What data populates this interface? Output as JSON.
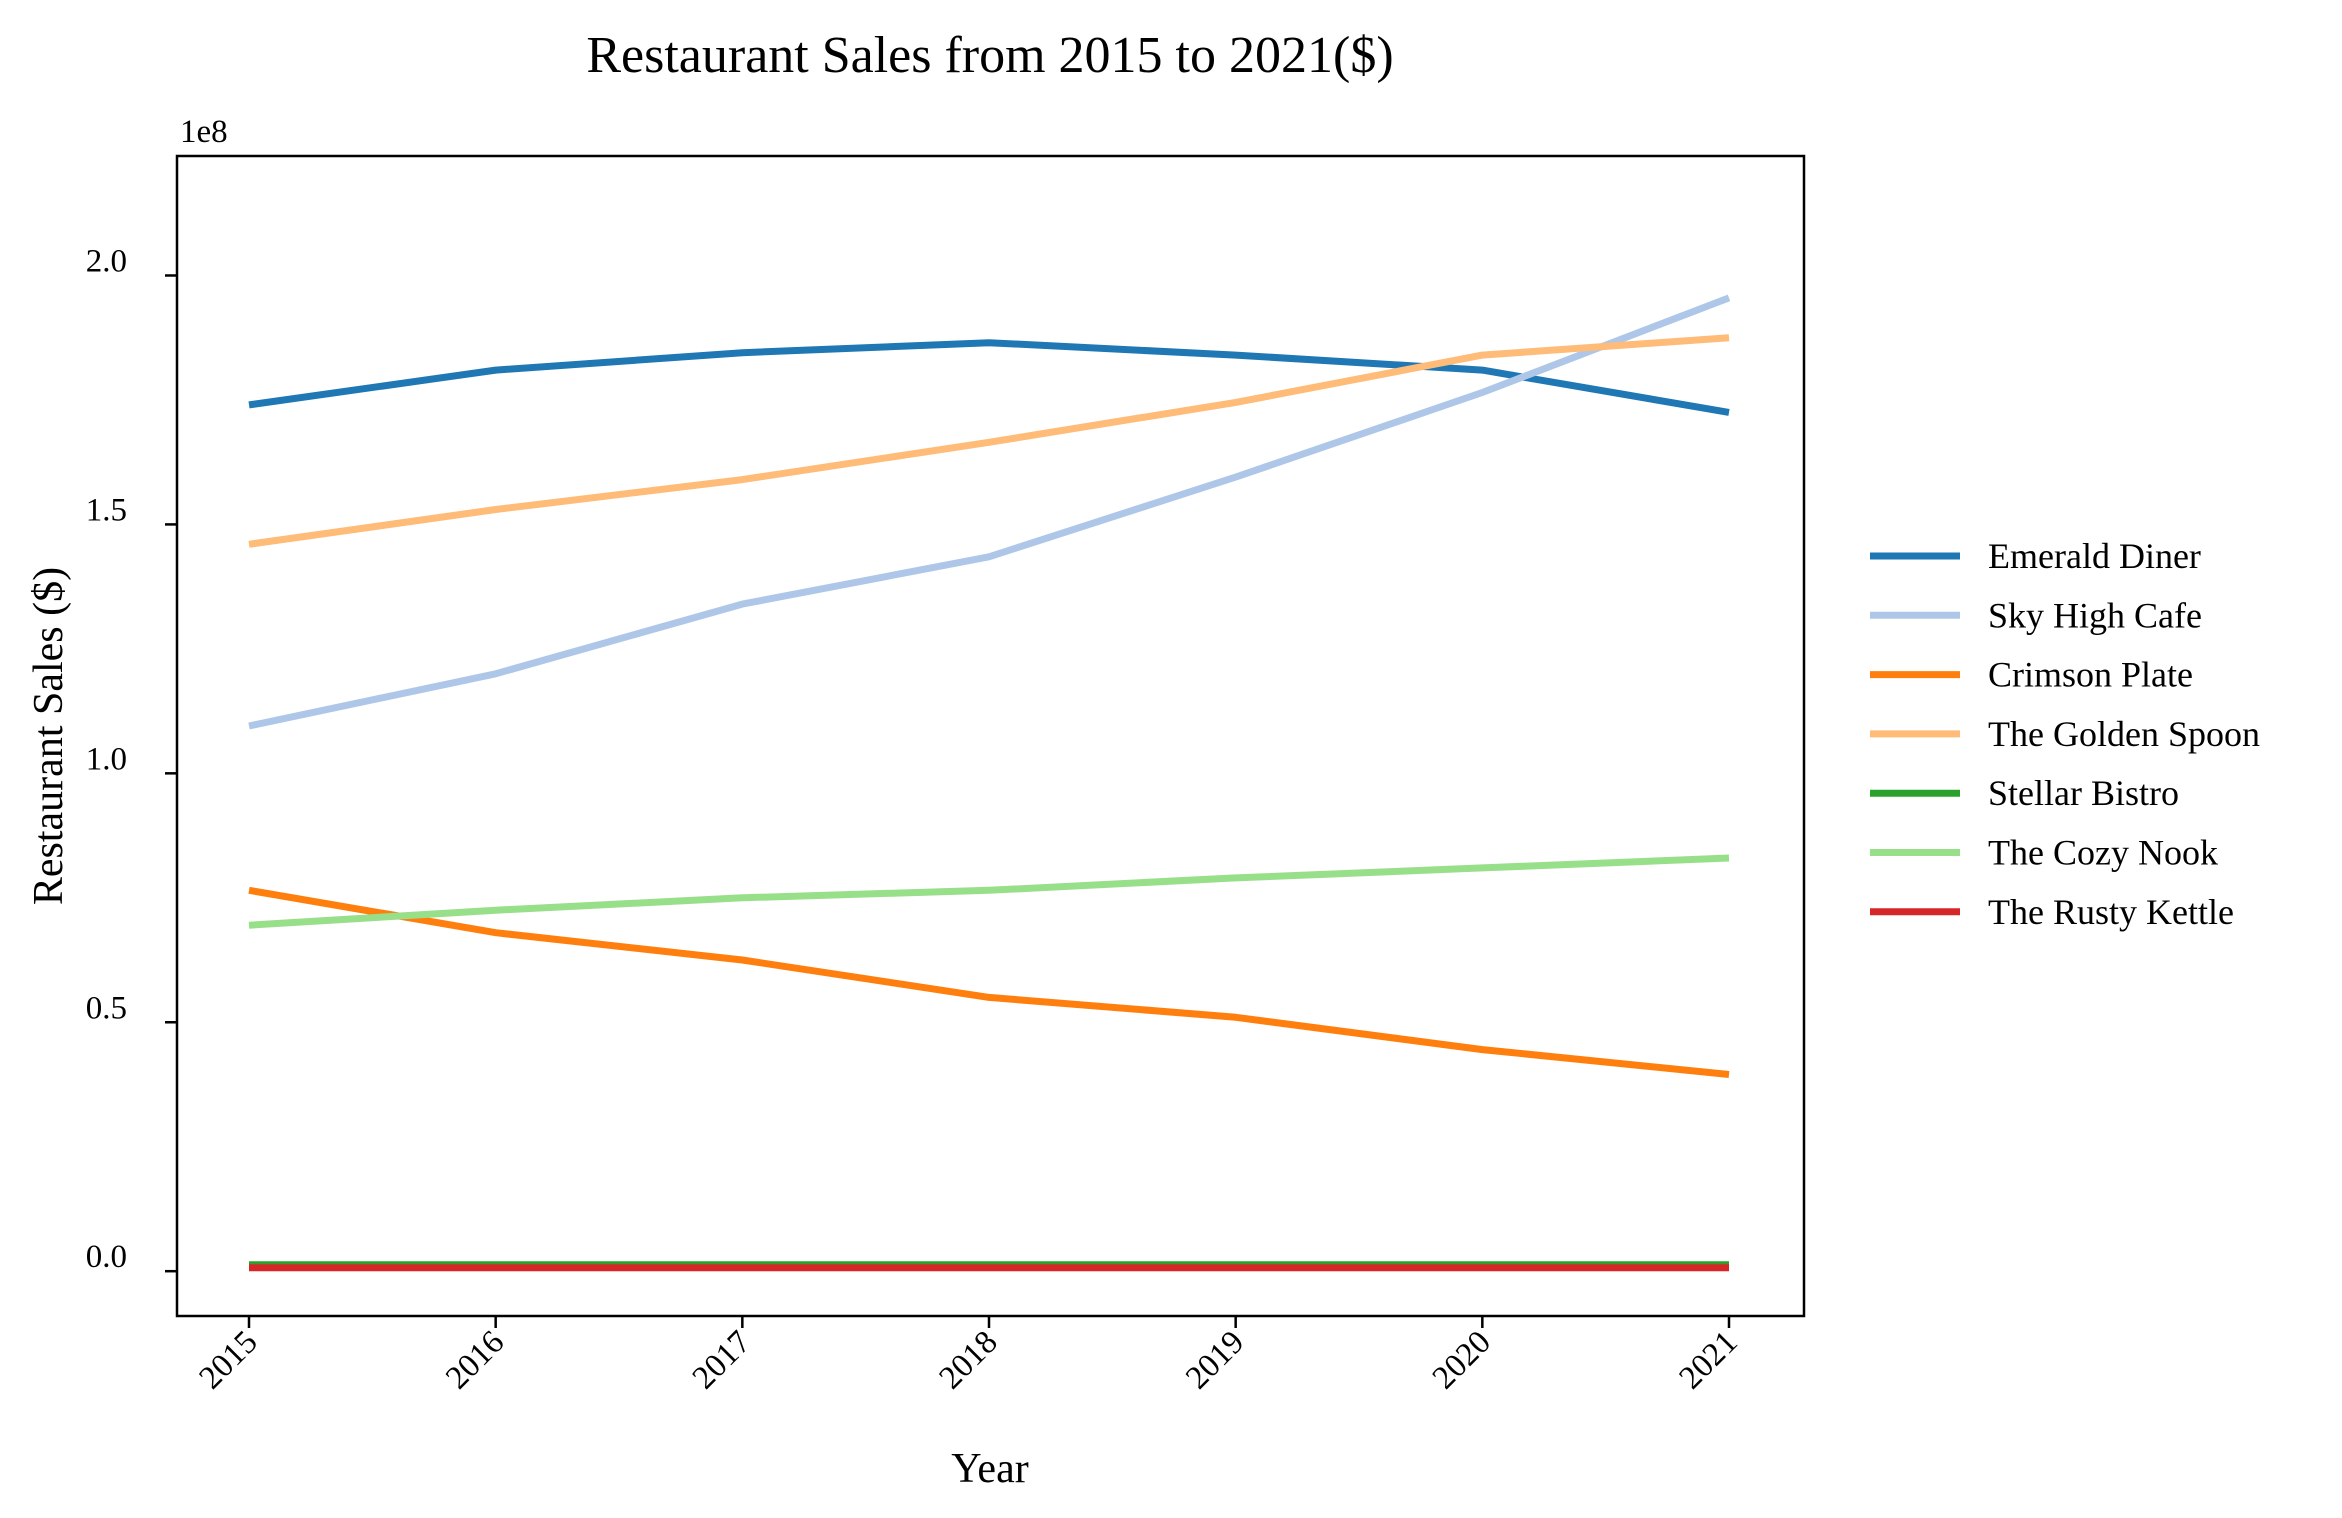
{
  "chart_data": {
    "type": "line",
    "title": "Restaurant Sales from 2015 to 2021($)",
    "xlabel": "Year",
    "ylabel": "Restaurant Sales ($)",
    "y_exponent_label": "1e8",
    "x": [
      "2015",
      "2016",
      "2017",
      "2018",
      "2019",
      "2020",
      "2021"
    ],
    "yticks": [
      {
        "value": 0,
        "label": "0.0"
      },
      {
        "value": 50000000,
        "label": "0.5"
      },
      {
        "value": 100000000,
        "label": "1.0"
      },
      {
        "value": 150000000,
        "label": "1.5"
      },
      {
        "value": 200000000,
        "label": "2.0"
      }
    ],
    "ylim": [
      -9000000,
      224000000
    ],
    "grid": false,
    "legend_position": "center-right outside",
    "series": [
      {
        "name": "Emerald Diner",
        "color": "#1f77b4",
        "values": [
          174000000,
          181000000,
          184500000,
          186500000,
          184000000,
          181000000,
          172500000
        ]
      },
      {
        "name": "Sky High Cafe",
        "color": "#aec7e8",
        "values": [
          109500000,
          120000000,
          134000000,
          143500000,
          159500000,
          176500000,
          195500000
        ]
      },
      {
        "name": "Crimson Plate",
        "color": "#ff7f0e",
        "values": [
          76500000,
          68000000,
          62500000,
          55000000,
          51000000,
          44500000,
          39500000
        ]
      },
      {
        "name": "The Golden Spoon",
        "color": "#ffbb78",
        "values": [
          146000000,
          153000000,
          159000000,
          166500000,
          174500000,
          184000000,
          187500000
        ]
      },
      {
        "name": "Stellar Bistro",
        "color": "#2ca02c",
        "values": [
          1300000,
          1300000,
          1300000,
          1300000,
          1300000,
          1300000,
          1300000
        ]
      },
      {
        "name": "The Cozy Nook",
        "color": "#98df8a",
        "values": [
          69500000,
          72500000,
          75000000,
          76500000,
          79000000,
          81000000,
          83000000
        ]
      },
      {
        "name": "The Rusty Kettle",
        "color": "#d62728",
        "values": [
          700000,
          700000,
          700000,
          700000,
          700000,
          700000,
          700000
        ]
      }
    ]
  }
}
